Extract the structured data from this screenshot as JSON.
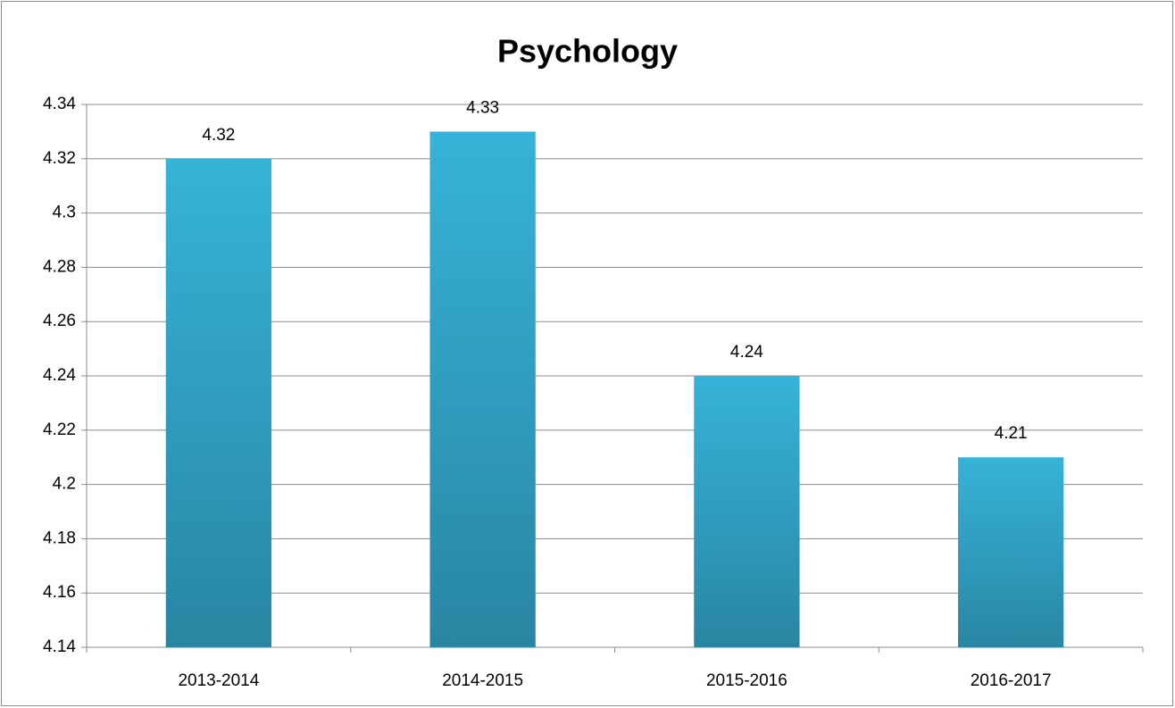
{
  "chart_data": {
    "type": "bar",
    "title": "Psychology",
    "categories": [
      "2013-2014",
      "2014-2015",
      "2015-2016",
      "2016-2017"
    ],
    "values": [
      4.32,
      4.33,
      4.24,
      4.21
    ],
    "color": "#36b3d8",
    "ylim": [
      4.14,
      4.34
    ],
    "yticks": [
      4.14,
      4.16,
      4.18,
      4.2,
      4.22,
      4.24,
      4.26,
      4.28,
      4.3,
      4.32,
      4.34
    ],
    "grid": true
  }
}
